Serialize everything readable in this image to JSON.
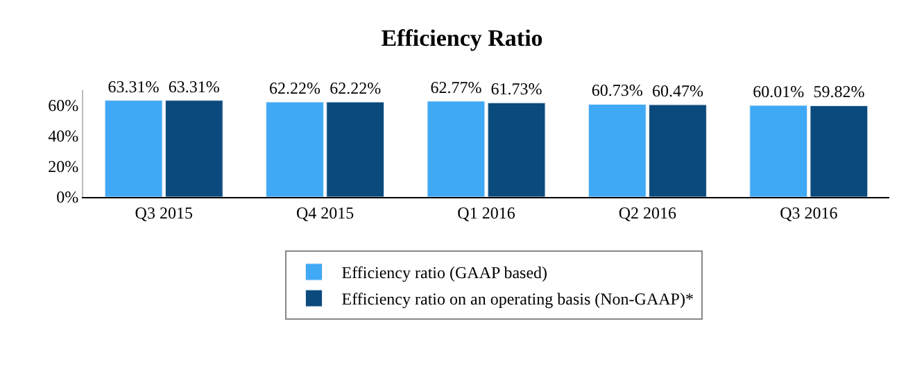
{
  "chart_data": {
    "type": "bar",
    "title": "Efficiency Ratio",
    "categories": [
      "Q3 2015",
      "Q4 2015",
      "Q1 2016",
      "Q2 2016",
      "Q3 2016"
    ],
    "series": [
      {
        "name": "Efficiency ratio (GAAP based)",
        "color": "#3fa9f5",
        "values": [
          63.31,
          62.22,
          62.77,
          60.73,
          60.01
        ],
        "value_labels": [
          "63.31%",
          "62.22%",
          "62.77%",
          "60.73%",
          "60.01%"
        ]
      },
      {
        "name": "Efficiency ratio on an operating basis (Non-GAAP)*",
        "color": "#0b4a7c",
        "values": [
          63.31,
          62.22,
          61.73,
          60.47,
          59.82
        ],
        "value_labels": [
          "63.31%",
          "62.22%",
          "61.73%",
          "60.47%",
          "59.82%"
        ]
      }
    ],
    "ylim": [
      0,
      70
    ],
    "yticks": [
      {
        "value": 0,
        "label": "0%"
      },
      {
        "value": 20,
        "label": "20%"
      },
      {
        "value": 40,
        "label": "40%"
      },
      {
        "value": 60,
        "label": "60%"
      }
    ],
    "legend": "bottom"
  }
}
